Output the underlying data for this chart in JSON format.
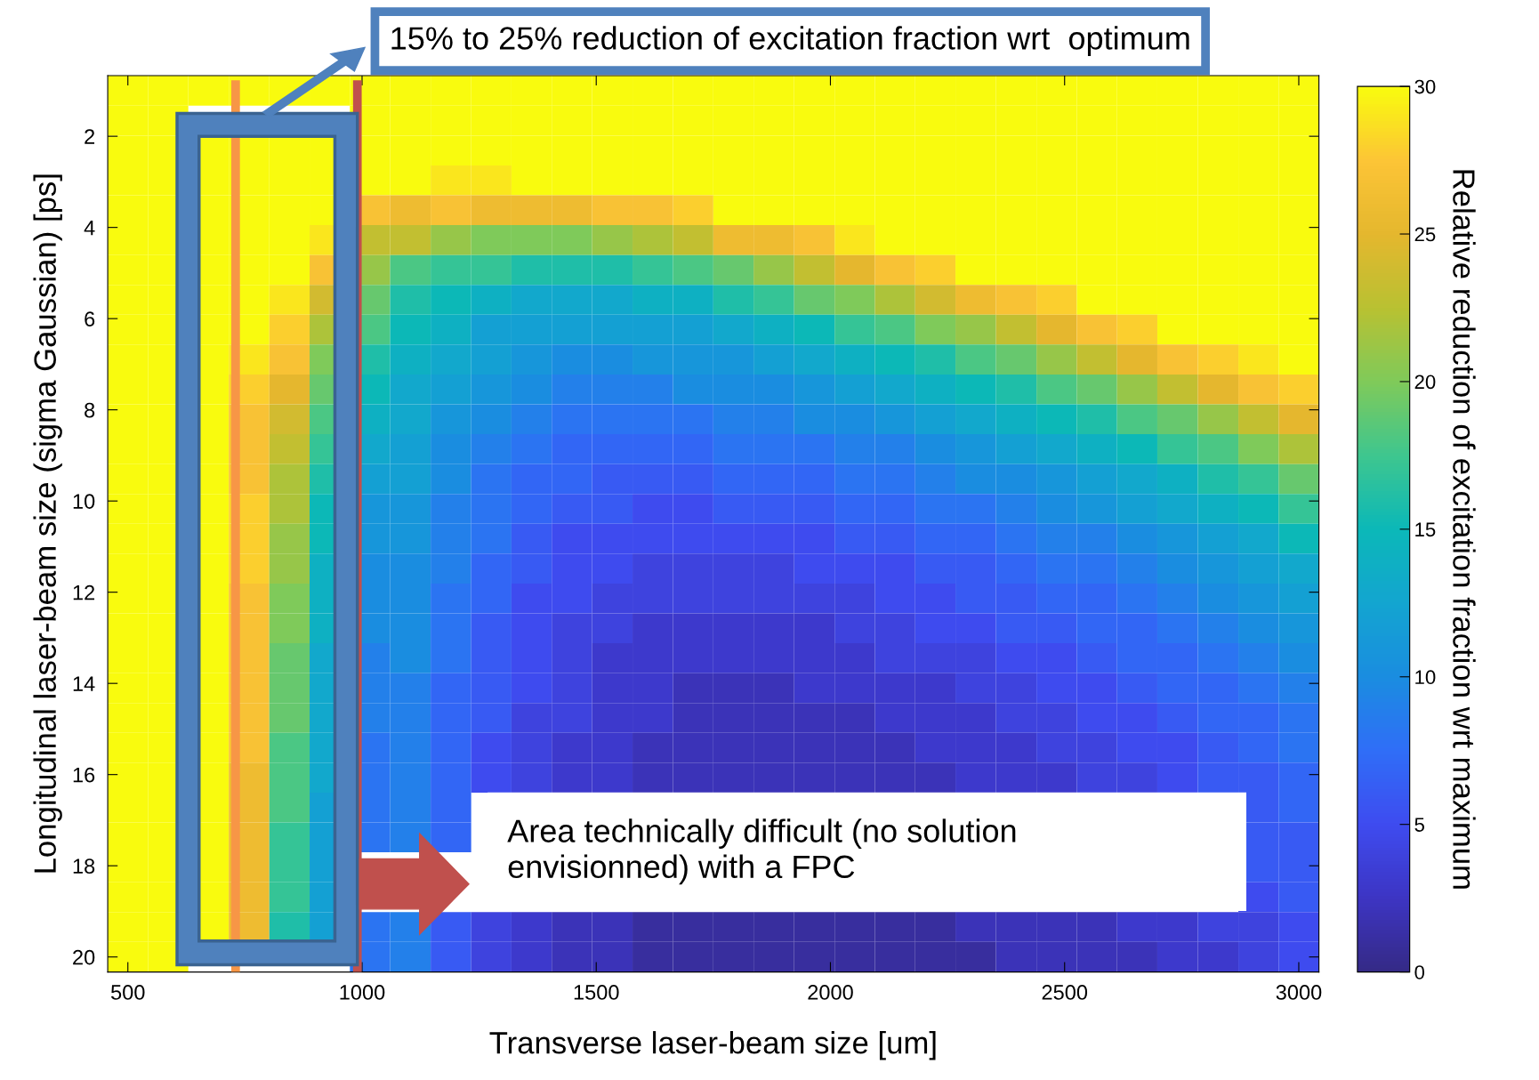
{
  "chart_data": {
    "type": "heatmap",
    "xlabel": "Transverse laser-beam size [um]",
    "ylabel": "Longitudinal laser-beam size (sigma Gaussian) [ps]",
    "clabel": "Relative reduction of excitation fraction wrt maximum",
    "annotations": [
      "15% to 25% reduction of excitation fraction wrt  optimum",
      "Area technically difficult (no solution\nenvisionned) with a FPC"
    ],
    "x": [
      500,
      586,
      672,
      759,
      845,
      931,
      1017,
      1103,
      1190,
      1276,
      1362,
      1448,
      1534,
      1621,
      1707,
      1793,
      1879,
      1966,
      2052,
      2138,
      2224,
      2310,
      2397,
      2483,
      2569,
      2655,
      2741,
      2828,
      2914,
      3000
    ],
    "y": [
      1,
      1.66,
      2.31,
      2.97,
      3.62,
      4.28,
      4.93,
      5.59,
      6.24,
      6.9,
      7.55,
      8.21,
      8.86,
      9.52,
      10.17,
      10.83,
      11.48,
      12.14,
      12.79,
      13.45,
      14.1,
      14.76,
      15.41,
      16.07,
      16.72,
      17.38,
      18.03,
      18.69,
      19.34,
      20
    ],
    "xlim": [
      457,
      3043
    ],
    "ylim": [
      20.33,
      0.67
    ],
    "xticks": [
      500,
      1000,
      1500,
      2000,
      2500,
      3000
    ],
    "yticks": [
      2,
      4,
      6,
      8,
      10,
      12,
      14,
      16,
      18,
      20
    ],
    "clim": [
      0,
      30
    ],
    "cticks": [
      0,
      5,
      10,
      15,
      20,
      25,
      30
    ],
    "ref_lines": [
      {
        "axis": "x",
        "value": 730,
        "color": "#f79646"
      },
      {
        "axis": "x",
        "value": 990,
        "color": "#c0504d"
      }
    ],
    "cells": [
      [
        30,
        30,
        30,
        30,
        30,
        30,
        30,
        30,
        30,
        30,
        30,
        30,
        30,
        30,
        30,
        30,
        30,
        30,
        30,
        30,
        30,
        30,
        30,
        30,
        30,
        30,
        30,
        30,
        30,
        30
      ],
      [
        30,
        30,
        null,
        null,
        null,
        null,
        30,
        30,
        30,
        30,
        30,
        30,
        30,
        30,
        30,
        30,
        30,
        30,
        30,
        30,
        30,
        30,
        30,
        30,
        30,
        30,
        30,
        30,
        30,
        30
      ],
      [
        30,
        30,
        30,
        30,
        30,
        30,
        30,
        30,
        30,
        30,
        30,
        30,
        30,
        30,
        30,
        30,
        30,
        30,
        30,
        30,
        30,
        30,
        30,
        30,
        30,
        30,
        30,
        30,
        30,
        30
      ],
      [
        30,
        30,
        30,
        30,
        30,
        30,
        30,
        30,
        29,
        29,
        30,
        30,
        30,
        30,
        30,
        30,
        30,
        30,
        30,
        30,
        30,
        30,
        30,
        30,
        30,
        30,
        30,
        30,
        30,
        30
      ],
      [
        30,
        30,
        30,
        30,
        30,
        30,
        27,
        26,
        27,
        26,
        26,
        26,
        27,
        27,
        28,
        30,
        30,
        30,
        30,
        30,
        30,
        30,
        30,
        30,
        30,
        30,
        30,
        30,
        30,
        30
      ],
      [
        30,
        30,
        30,
        30,
        30,
        29,
        23,
        23,
        21,
        20,
        20,
        20,
        21,
        22,
        23,
        26,
        26,
        27,
        29,
        30,
        30,
        30,
        30,
        30,
        30,
        30,
        30,
        30,
        30,
        30
      ],
      [
        30,
        30,
        30,
        30,
        30,
        27,
        21,
        18,
        17,
        17,
        16,
        16,
        16,
        17,
        18,
        19,
        21,
        23,
        25,
        27,
        28,
        30,
        30,
        30,
        30,
        30,
        30,
        30,
        30,
        30
      ],
      [
        30,
        30,
        30,
        30,
        29,
        24,
        19,
        16,
        15,
        14,
        13,
        13,
        13,
        14,
        14,
        16,
        17,
        19,
        20,
        22,
        24,
        26,
        27,
        28,
        30,
        30,
        30,
        30,
        30,
        30
      ],
      [
        30,
        30,
        30,
        30,
        28,
        22,
        18,
        15,
        14,
        12,
        12,
        12,
        12,
        12,
        12,
        13,
        14,
        15,
        17,
        18,
        20,
        21,
        23,
        25,
        27,
        28,
        30,
        30,
        30,
        30
      ],
      [
        30,
        30,
        30,
        29,
        27,
        20,
        16,
        14,
        13,
        12,
        11,
        10,
        10,
        11,
        11,
        11,
        12,
        13,
        14,
        15,
        16,
        18,
        19,
        21,
        23,
        25,
        27,
        28,
        29,
        30
      ],
      [
        30,
        30,
        30,
        28,
        25,
        19,
        15,
        13,
        12,
        11,
        10,
        9,
        9,
        9,
        10,
        10,
        10,
        11,
        12,
        13,
        14,
        15,
        16,
        18,
        19,
        21,
        23,
        25,
        27,
        28
      ],
      [
        30,
        30,
        30,
        27,
        24,
        18,
        14,
        13,
        11,
        10,
        9,
        8,
        8,
        8,
        8,
        9,
        9,
        10,
        10,
        11,
        12,
        13,
        14,
        15,
        16,
        18,
        19,
        21,
        23,
        25
      ],
      [
        30,
        30,
        30,
        27,
        23,
        17,
        13,
        12,
        10,
        9,
        8,
        7,
        7,
        7,
        7,
        8,
        8,
        8,
        9,
        9,
        10,
        11,
        12,
        13,
        14,
        15,
        17,
        18,
        20,
        22
      ],
      [
        30,
        30,
        30,
        27,
        22,
        16,
        12,
        12,
        10,
        8,
        7,
        7,
        6,
        6,
        6,
        7,
        7,
        7,
        8,
        8,
        9,
        10,
        10,
        11,
        12,
        13,
        14,
        16,
        17,
        19
      ],
      [
        30,
        30,
        30,
        28,
        22,
        15,
        11,
        11,
        9,
        8,
        7,
        6,
        6,
        5,
        5,
        6,
        6,
        6,
        7,
        7,
        8,
        8,
        9,
        10,
        11,
        12,
        13,
        14,
        15,
        17
      ],
      [
        30,
        30,
        30,
        28,
        21,
        15,
        11,
        11,
        9,
        8,
        6,
        5,
        5,
        5,
        5,
        5,
        5,
        5,
        6,
        6,
        7,
        7,
        8,
        9,
        9,
        10,
        11,
        12,
        13,
        15
      ],
      [
        30,
        30,
        30,
        28,
        21,
        14,
        10,
        10,
        9,
        7,
        6,
        5,
        5,
        4,
        4,
        4,
        4,
        5,
        5,
        5,
        6,
        6,
        7,
        8,
        8,
        9,
        10,
        11,
        12,
        13
      ],
      [
        30,
        30,
        30,
        27,
        20,
        14,
        10,
        10,
        8,
        7,
        5,
        5,
        4,
        4,
        4,
        4,
        4,
        4,
        4,
        5,
        5,
        6,
        6,
        7,
        7,
        8,
        9,
        10,
        11,
        12
      ],
      [
        30,
        30,
        30,
        27,
        20,
        14,
        10,
        10,
        8,
        6,
        5,
        4,
        4,
        3,
        3,
        3,
        3,
        3,
        4,
        4,
        5,
        5,
        6,
        6,
        7,
        7,
        8,
        9,
        10,
        11
      ],
      [
        30,
        30,
        30,
        27,
        19,
        13,
        9,
        10,
        8,
        6,
        5,
        4,
        3,
        3,
        3,
        3,
        3,
        3,
        3,
        4,
        4,
        4,
        5,
        5,
        6,
        7,
        7,
        8,
        9,
        10
      ],
      [
        30,
        30,
        30,
        27,
        19,
        13,
        9,
        9,
        7,
        6,
        5,
        4,
        3,
        3,
        2,
        2,
        2,
        3,
        3,
        3,
        3,
        4,
        4,
        5,
        5,
        6,
        7,
        7,
        8,
        9
      ],
      [
        30,
        30,
        30,
        27,
        19,
        13,
        9,
        9,
        7,
        6,
        4,
        4,
        3,
        3,
        2,
        2,
        2,
        2,
        2,
        3,
        3,
        3,
        4,
        4,
        5,
        5,
        6,
        7,
        7,
        8
      ],
      [
        30,
        30,
        30,
        27,
        18,
        13,
        8,
        9,
        7,
        5,
        4,
        3,
        3,
        2,
        2,
        2,
        2,
        2,
        2,
        2,
        3,
        3,
        3,
        4,
        4,
        5,
        5,
        6,
        7,
        8
      ],
      [
        30,
        30,
        30,
        26,
        18,
        13,
        8,
        9,
        7,
        5,
        4,
        3,
        3,
        2,
        2,
        2,
        2,
        2,
        2,
        2,
        2,
        3,
        3,
        3,
        4,
        4,
        5,
        6,
        6,
        7
      ],
      [
        30,
        30,
        30,
        26,
        18,
        12,
        8,
        9,
        7,
        null,
        null,
        null,
        null,
        null,
        null,
        null,
        null,
        null,
        null,
        null,
        null,
        null,
        null,
        null,
        null,
        null,
        null,
        null,
        6,
        7
      ],
      [
        30,
        30,
        30,
        26,
        17,
        12,
        8,
        9,
        7,
        null,
        null,
        null,
        null,
        null,
        null,
        null,
        null,
        null,
        null,
        null,
        null,
        null,
        null,
        null,
        null,
        null,
        null,
        null,
        6,
        6
      ],
      [
        30,
        30,
        30,
        26,
        17,
        12,
        null,
        null,
        null,
        null,
        null,
        null,
        null,
        null,
        null,
        null,
        null,
        null,
        null,
        null,
        null,
        null,
        null,
        null,
        null,
        null,
        null,
        null,
        6,
        6
      ],
      [
        30,
        30,
        30,
        26,
        17,
        12,
        null,
        null,
        null,
        null,
        null,
        null,
        null,
        null,
        null,
        null,
        null,
        null,
        null,
        null,
        null,
        null,
        null,
        null,
        null,
        null,
        null,
        null,
        5,
        6
      ],
      [
        30,
        30,
        30,
        26,
        16,
        12,
        8,
        9,
        6,
        4,
        3,
        2,
        2,
        1,
        1,
        1,
        1,
        1,
        1,
        1,
        1,
        2,
        2,
        2,
        2,
        3,
        3,
        4,
        4,
        5
      ],
      [
        30,
        30,
        null,
        null,
        null,
        null,
        8,
        9,
        6,
        4,
        3,
        2,
        2,
        1,
        1,
        1,
        1,
        1,
        1,
        1,
        1,
        1,
        2,
        2,
        2,
        2,
        3,
        3,
        4,
        5
      ]
    ]
  }
}
